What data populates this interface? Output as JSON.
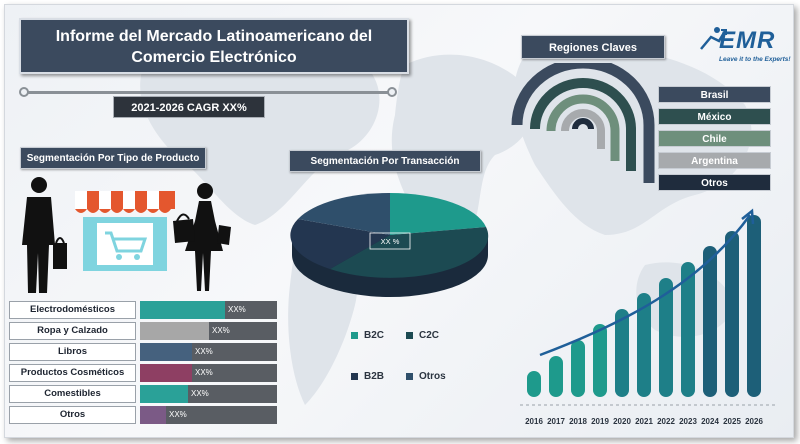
{
  "title": {
    "line1": "Informe del Mercado Latinoamericano del",
    "line2": "Comercio Electrónico"
  },
  "cagr": "2021-2026 CAGR XX%",
  "logo": {
    "brand": "EMR",
    "tagline": "Leave it to the Experts!",
    "color": "#1f5f99"
  },
  "product_segmentation": {
    "title": "Segmentación Por Tipo de Producto",
    "icons": [
      "shopping-man-icon",
      "storefront-cart-icon",
      "shopping-woman-icon"
    ],
    "items": [
      {
        "label": "Electrodomésticos",
        "value": "XX%",
        "share": 0.62,
        "color": "#2aa198"
      },
      {
        "label": "Ropa y Calzado",
        "value": "XX%",
        "share": 0.5,
        "color": "#a7a7a7"
      },
      {
        "label": "Libros",
        "value": "XX%",
        "share": 0.38,
        "color": "#45617e"
      },
      {
        "label": "Productos Cosméticos",
        "value": "XX%",
        "share": 0.38,
        "color": "#8e3f63"
      },
      {
        "label": "Comestibles",
        "value": "XX%",
        "share": 0.35,
        "color": "#2aa198"
      },
      {
        "label": "Otros",
        "value": "XX%",
        "share": 0.19,
        "color": "#7b5a86"
      }
    ]
  },
  "transaction_segmentation": {
    "title": "Segmentación Por Transacción",
    "center_label": "XX %",
    "legend": [
      {
        "label": "B2C",
        "color": "#1e9a8c"
      },
      {
        "label": "C2C",
        "color": "#1c4a52"
      },
      {
        "label": "B2B",
        "color": "#233650"
      },
      {
        "label": "Otros",
        "color": "#2f4f6b"
      }
    ]
  },
  "regions": {
    "title": "Regiones Claves",
    "items": [
      {
        "label": "Brasil",
        "color": "#3b4a5e"
      },
      {
        "label": "México",
        "color": "#2e4f4f"
      },
      {
        "label": "Chile",
        "color": "#6e8f7c"
      },
      {
        "label": "Argentina",
        "color": "#a7aaad"
      },
      {
        "label": "Otros",
        "color": "#1f2c3d"
      }
    ]
  },
  "chart_data": {
    "type": "bar",
    "categories": [
      "2016",
      "2017",
      "2018",
      "2019",
      "2020",
      "2021",
      "2022",
      "2023",
      "2024",
      "2025",
      "2026"
    ],
    "values": [
      1,
      2,
      3,
      4,
      5,
      6,
      7,
      8,
      9,
      10,
      11
    ],
    "title": "",
    "xlabel": "",
    "ylabel": "",
    "grid": false,
    "trend_arrow": true,
    "colors": [
      "#1e9a8c",
      "#1e7f88",
      "#1d5f78"
    ]
  }
}
